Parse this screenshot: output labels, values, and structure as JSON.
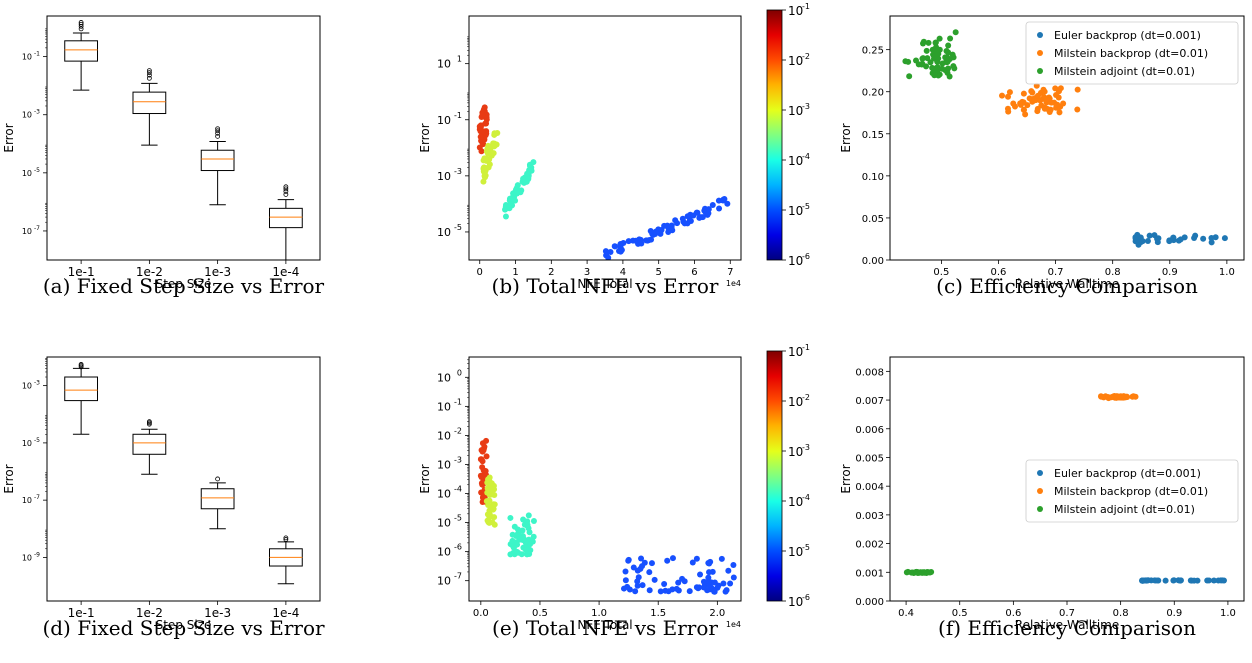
{
  "chart_data": [
    {
      "id": "a",
      "type": "box",
      "caption": "(a) Fixed Step Size vs Error",
      "xlabel": "Step Size",
      "ylabel": "Error",
      "yscale": "log",
      "ylim": [
        1e-08,
        2.5
      ],
      "yticks": [
        {
          "v": 0.1,
          "label": "10"
        },
        {
          "v": 0.001,
          "label": "10"
        },
        {
          "v": 1e-05,
          "label": "10"
        },
        {
          "v": 1e-07,
          "label": "10"
        }
      ],
      "ytick_exps": [
        "-1",
        "-3",
        "-5",
        "-7"
      ],
      "categories": [
        "1e-1",
        "1e-2",
        "1e-3",
        "1e-4"
      ],
      "boxes": [
        {
          "wlo": 0.007,
          "q1": 0.07,
          "med": 0.17,
          "q3": 0.35,
          "whi": 0.65,
          "fliers": [
            0.9,
            1.1,
            1.3,
            1.5
          ]
        },
        {
          "wlo": 9e-05,
          "q1": 0.0011,
          "med": 0.0028,
          "q3": 0.006,
          "whi": 0.012,
          "fliers": [
            0.018,
            0.023,
            0.028,
            0.033
          ]
        },
        {
          "wlo": 8e-07,
          "q1": 1.2e-05,
          "med": 3e-05,
          "q3": 6e-05,
          "whi": 0.00012,
          "fliers": [
            0.00018,
            0.00023,
            0.00028,
            0.00033
          ]
        },
        {
          "wlo": 8e-09,
          "q1": 1.3e-07,
          "med": 3e-07,
          "q3": 6e-07,
          "whi": 1.2e-06,
          "fliers": [
            1.8e-06,
            2.3e-06,
            2.8e-06,
            3.3e-06
          ]
        }
      ]
    },
    {
      "id": "b",
      "type": "scatter",
      "caption": "(b) Total NFE vs Error",
      "xlabel": "NFE Total",
      "ylabel": "Error",
      "x_multiplier": "1e4",
      "xlim": [
        -0.3,
        7.3
      ],
      "xticks": [
        0,
        1,
        2,
        3,
        4,
        5,
        6,
        7
      ],
      "yscale": "log",
      "ylim": [
        1e-06,
        500
      ],
      "yticks": [
        {
          "v": 10,
          "label": "10"
        },
        {
          "v": 0.1,
          "label": "10"
        },
        {
          "v": 0.001,
          "label": "10"
        },
        {
          "v": 1e-05,
          "label": "10"
        }
      ],
      "ytick_exps": [
        "1",
        "-1",
        "-3",
        "-5"
      ],
      "clusters": [
        {
          "name": "1e-1",
          "color": "#e83b14",
          "xmin": 0.0,
          "xmax": 0.2,
          "ymin": 0.004,
          "ymax": 0.7,
          "n": 40,
          "trend": 0.4
        },
        {
          "name": "1e-2",
          "color": "#d0f03b",
          "xmin": 0.1,
          "xmax": 0.5,
          "ymin": 0.0006,
          "ymax": 0.09,
          "n": 40,
          "trend": 0.6
        },
        {
          "name": "1e-3",
          "color": "#3df5c8",
          "xmin": 0.7,
          "xmax": 1.5,
          "ymin": 3e-05,
          "ymax": 0.004,
          "n": 50,
          "trend": 0.8
        },
        {
          "name": "1e-4",
          "color": "#1750ff",
          "xmin": 3.5,
          "xmax": 7.0,
          "ymin": 1e-06,
          "ymax": 0.0002,
          "n": 70,
          "trend": 0.85
        }
      ],
      "colorbar": {
        "scale": "log",
        "range": [
          1e-06,
          0.1
        ],
        "ticks": [
          {
            "v": 0.1,
            "label": "10"
          },
          {
            "v": 0.01,
            "label": "10"
          },
          {
            "v": 0.001,
            "label": "10"
          },
          {
            "v": 0.0001,
            "label": "10"
          },
          {
            "v": 1e-05,
            "label": "10"
          },
          {
            "v": 1e-06,
            "label": "10"
          }
        ],
        "tick_exps": [
          "-1",
          "-2",
          "-3",
          "-4",
          "-5",
          "-6"
        ]
      }
    },
    {
      "id": "c",
      "type": "scatter",
      "caption": "(c) Efficiency Comparison",
      "xlabel": "Relative Walltime",
      "ylabel": "Error",
      "xlim": [
        0.41,
        1.03
      ],
      "xticks": [
        0.5,
        0.6,
        0.7,
        0.8,
        0.9,
        1.0
      ],
      "xtick_labels": [
        "0.5",
        "0.6",
        "0.7",
        "0.8",
        "0.9",
        "1.0"
      ],
      "ylim": [
        0,
        0.29
      ],
      "yticks": [
        0.0,
        0.05,
        0.1,
        0.15,
        0.2,
        0.25
      ],
      "ytick_labels": [
        "0.00",
        "0.05",
        "0.10",
        "0.15",
        "0.20",
        "0.25"
      ],
      "legend_position": "top-right",
      "series": [
        {
          "name": "Euler backprop (dt=0.001)",
          "color": "#1f77b4",
          "xmin": 0.84,
          "xmax": 1.0,
          "ymin": 0.017,
          "ymax": 0.032,
          "n": 35,
          "skew": true
        },
        {
          "name": "Milstein backprop (dt=0.01)",
          "color": "#ff7f0e",
          "xmin": 0.6,
          "xmax": 0.75,
          "ymin": 0.165,
          "ymax": 0.212,
          "n": 60,
          "skew": false
        },
        {
          "name": "Milstein adjoint (dt=0.01)",
          "color": "#2ca02c",
          "xmin": 0.43,
          "xmax": 0.54,
          "ymin": 0.197,
          "ymax": 0.281,
          "n": 60,
          "skew": false
        }
      ]
    },
    {
      "id": "d",
      "type": "box",
      "caption": "(d) Fixed Step Size vs Error",
      "xlabel": "Step Size",
      "ylabel": "Error",
      "yscale": "log",
      "ylim": [
        3e-11,
        0.01
      ],
      "yticks": [
        {
          "v": 0.001,
          "label": "10"
        },
        {
          "v": 1e-05,
          "label": "10"
        },
        {
          "v": 1e-07,
          "label": "10"
        },
        {
          "v": 1e-09,
          "label": "10"
        }
      ],
      "ytick_exps": [
        "-3",
        "-5",
        "-7",
        "-9"
      ],
      "categories": [
        "1e-1",
        "1e-2",
        "1e-3",
        "1e-4"
      ],
      "boxes": [
        {
          "wlo": 2e-05,
          "q1": 0.0003,
          "med": 0.0007,
          "q3": 0.002,
          "whi": 0.004,
          "fliers": [
            0.0045,
            0.005,
            0.0055
          ]
        },
        {
          "wlo": 8e-07,
          "q1": 4e-06,
          "med": 1e-05,
          "q3": 2e-05,
          "whi": 3e-05,
          "fliers": [
            4.5e-05,
            5e-05,
            5.5e-05
          ]
        },
        {
          "wlo": 1e-08,
          "q1": 5e-08,
          "med": 1.2e-07,
          "q3": 2.5e-07,
          "whi": 4e-07,
          "fliers": [
            5.5e-07
          ]
        },
        {
          "wlo": 1.2e-10,
          "q1": 5e-10,
          "med": 1e-09,
          "q3": 2e-09,
          "whi": 3.5e-09,
          "fliers": [
            4.2e-09,
            4.8e-09
          ]
        }
      ]
    },
    {
      "id": "e",
      "type": "scatter",
      "caption": "(e) Total NFE vs Error",
      "xlabel": "NFE Total",
      "ylabel": "Error",
      "x_multiplier": "1e4",
      "xlim": [
        -0.1,
        2.2
      ],
      "xticks": [
        0.0,
        0.5,
        1.0,
        1.5,
        2.0
      ],
      "xtick_labels": [
        "0.0",
        "0.5",
        "1.0",
        "1.5",
        "2.0"
      ],
      "yscale": "log",
      "ylim": [
        2e-08,
        5
      ],
      "yticks": [
        {
          "v": 1,
          "label": "10"
        },
        {
          "v": 0.1,
          "label": "10"
        },
        {
          "v": 0.01,
          "label": "10"
        },
        {
          "v": 0.001,
          "label": "10"
        },
        {
          "v": 0.0001,
          "label": "10"
        },
        {
          "v": 1e-05,
          "label": "10"
        },
        {
          "v": 1e-06,
          "label": "10"
        },
        {
          "v": 1e-07,
          "label": "10"
        }
      ],
      "ytick_exps": [
        "0",
        "-1",
        "-2",
        "-3",
        "-4",
        "-5",
        "-6",
        "-7"
      ],
      "clusters": [
        {
          "name": "1e-1",
          "color": "#e83b14",
          "xmin": 0.0,
          "xmax": 0.05,
          "ymin": 5e-05,
          "ymax": 0.008,
          "n": 40,
          "trend": 0.1
        },
        {
          "name": "1e-2",
          "color": "#d0f03b",
          "xmin": 0.05,
          "xmax": 0.12,
          "ymin": 8e-06,
          "ymax": 0.0006,
          "n": 40,
          "trend": 0.1
        },
        {
          "name": "1e-3",
          "color": "#3df5c8",
          "xmin": 0.25,
          "xmax": 0.45,
          "ymin": 8e-07,
          "ymax": 2e-05,
          "n": 50,
          "trend": 0.1
        },
        {
          "name": "1e-4",
          "color": "#1750ff",
          "xmin": 1.2,
          "xmax": 2.15,
          "ymin": 4e-08,
          "ymax": 6e-07,
          "n": 70,
          "trend": 0.1
        }
      ],
      "colorbar": {
        "scale": "log",
        "range": [
          1e-06,
          0.1
        ],
        "ticks": [
          {
            "v": 0.1,
            "label": "10"
          },
          {
            "v": 0.01,
            "label": "10"
          },
          {
            "v": 0.001,
            "label": "10"
          },
          {
            "v": 0.0001,
            "label": "10"
          },
          {
            "v": 1e-05,
            "label": "10"
          },
          {
            "v": 1e-06,
            "label": "10"
          }
        ],
        "tick_exps": [
          "-1",
          "-2",
          "-3",
          "-4",
          "-5",
          "-6"
        ]
      }
    },
    {
      "id": "f",
      "type": "scatter",
      "caption": "(f) Efficiency Comparison",
      "xlabel": "Relative Walltime",
      "ylabel": "Error",
      "xlim": [
        0.37,
        1.03
      ],
      "xticks": [
        0.4,
        0.5,
        0.6,
        0.7,
        0.8,
        0.9,
        1.0
      ],
      "xtick_labels": [
        "0.4",
        "0.5",
        "0.6",
        "0.7",
        "0.8",
        "0.9",
        "1.0"
      ],
      "ylim": [
        0,
        0.0085
      ],
      "yticks": [
        0.0,
        0.001,
        0.002,
        0.003,
        0.004,
        0.005,
        0.006,
        0.007,
        0.008
      ],
      "ytick_labels": [
        "0.000",
        "0.001",
        "0.002",
        "0.003",
        "0.004",
        "0.005",
        "0.006",
        "0.007",
        "0.008"
      ],
      "legend_position": "center-right",
      "series": [
        {
          "name": "Euler backprop (dt=0.001)",
          "color": "#1f77b4",
          "xmin": 0.84,
          "xmax": 1.0,
          "ymin": 0.0007,
          "ymax": 0.00073,
          "n": 35,
          "skew": true
        },
        {
          "name": "Milstein backprop (dt=0.01)",
          "color": "#ff7f0e",
          "xmin": 0.76,
          "xmax": 0.83,
          "ymin": 0.00706,
          "ymax": 0.00716,
          "n": 50,
          "skew": false
        },
        {
          "name": "Milstein adjoint (dt=0.01)",
          "color": "#2ca02c",
          "xmin": 0.4,
          "xmax": 0.45,
          "ymin": 0.00097,
          "ymax": 0.00102,
          "n": 40,
          "skew": false
        }
      ]
    }
  ]
}
